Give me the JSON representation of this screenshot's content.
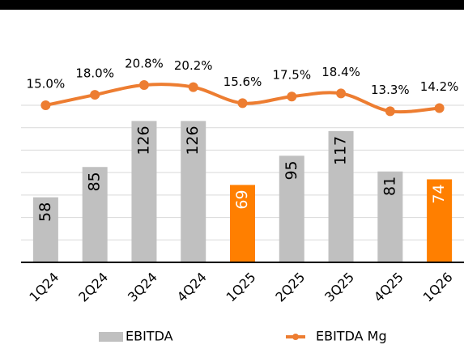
{
  "chart_data": {
    "type": "bar",
    "categories": [
      "1Q24",
      "2Q24",
      "3Q24",
      "4Q24",
      "1Q25",
      "2Q25",
      "3Q25",
      "4Q25",
      "1Q26"
    ],
    "series": [
      {
        "name": "EBITDA",
        "type": "bar",
        "color": "#c0c0c0",
        "colors": [
          "#c0c0c0",
          "#c0c0c0",
          "#c0c0c0",
          "#c0c0c0",
          "#ff7f00",
          "#c0c0c0",
          "#c0c0c0",
          "#c0c0c0",
          "#ff7f00"
        ],
        "values": [
          58,
          85,
          126,
          126,
          69,
          95,
          117,
          81,
          74
        ]
      },
      {
        "name": "EBITDA Mg",
        "type": "line",
        "axis": "y2",
        "color": "#ed7d31",
        "values": [
          15.0,
          18.0,
          20.8,
          20.2,
          15.6,
          17.5,
          18.4,
          13.3,
          14.2
        ],
        "value_labels": [
          "15.0%",
          "18.0%",
          "20.8%",
          "20.2%",
          "15.6%",
          "17.5%",
          "18.4%",
          "13.3%",
          "14.2%"
        ]
      }
    ],
    "ylim": [
      0,
      140
    ],
    "yticks": [
      0,
      20,
      40,
      60,
      80,
      100,
      120,
      140
    ],
    "y2lim": [
      -30,
      15
    ],
    "grid": true,
    "legend": "bottom"
  }
}
